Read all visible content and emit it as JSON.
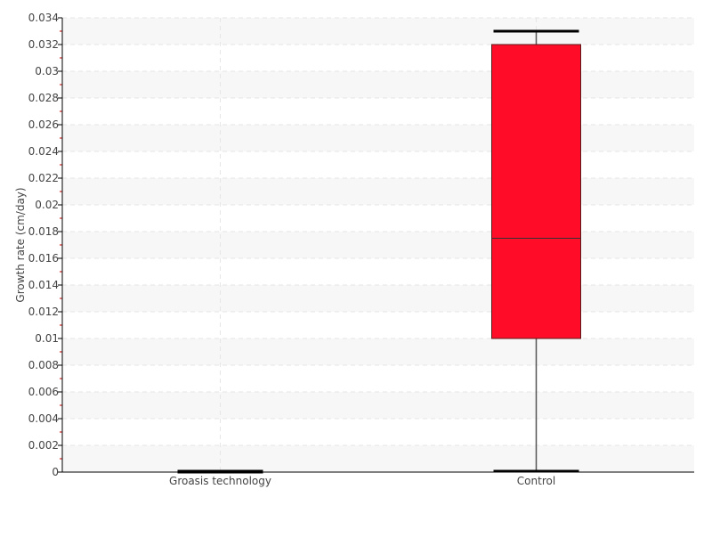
{
  "chart_data": {
    "type": "boxplot",
    "title": "",
    "xlabel": "",
    "ylabel": "Growth rate (cm/day)",
    "ylim": [
      0,
      0.034
    ],
    "ytick_step": 0.002,
    "yticks": [
      "0",
      "0.002",
      "0.004",
      "0.006",
      "0.008",
      "0.01",
      "0.012",
      "0.014",
      "0.016",
      "0.018",
      "0.02",
      "0.022",
      "0.024",
      "0.026",
      "0.028",
      "0.03",
      "0.032",
      "0.034"
    ],
    "grid": true,
    "categories": [
      "Groasis technology",
      "Control"
    ],
    "boxes": [
      {
        "category": "Groasis technology",
        "min": 0,
        "q1": 0,
        "median": 0,
        "q3": 0,
        "max": 0
      },
      {
        "category": "Control",
        "min": 0,
        "q1": 0.01,
        "median": 0.0175,
        "q3": 0.032,
        "max": 0.033
      }
    ],
    "colors": {
      "box": "#ff0d28",
      "box_stroke": "#5a1a1a",
      "whisker": "#555555",
      "cap": "#000000",
      "band": "#f7f7f7",
      "minor_tick": "#cc0000"
    }
  }
}
